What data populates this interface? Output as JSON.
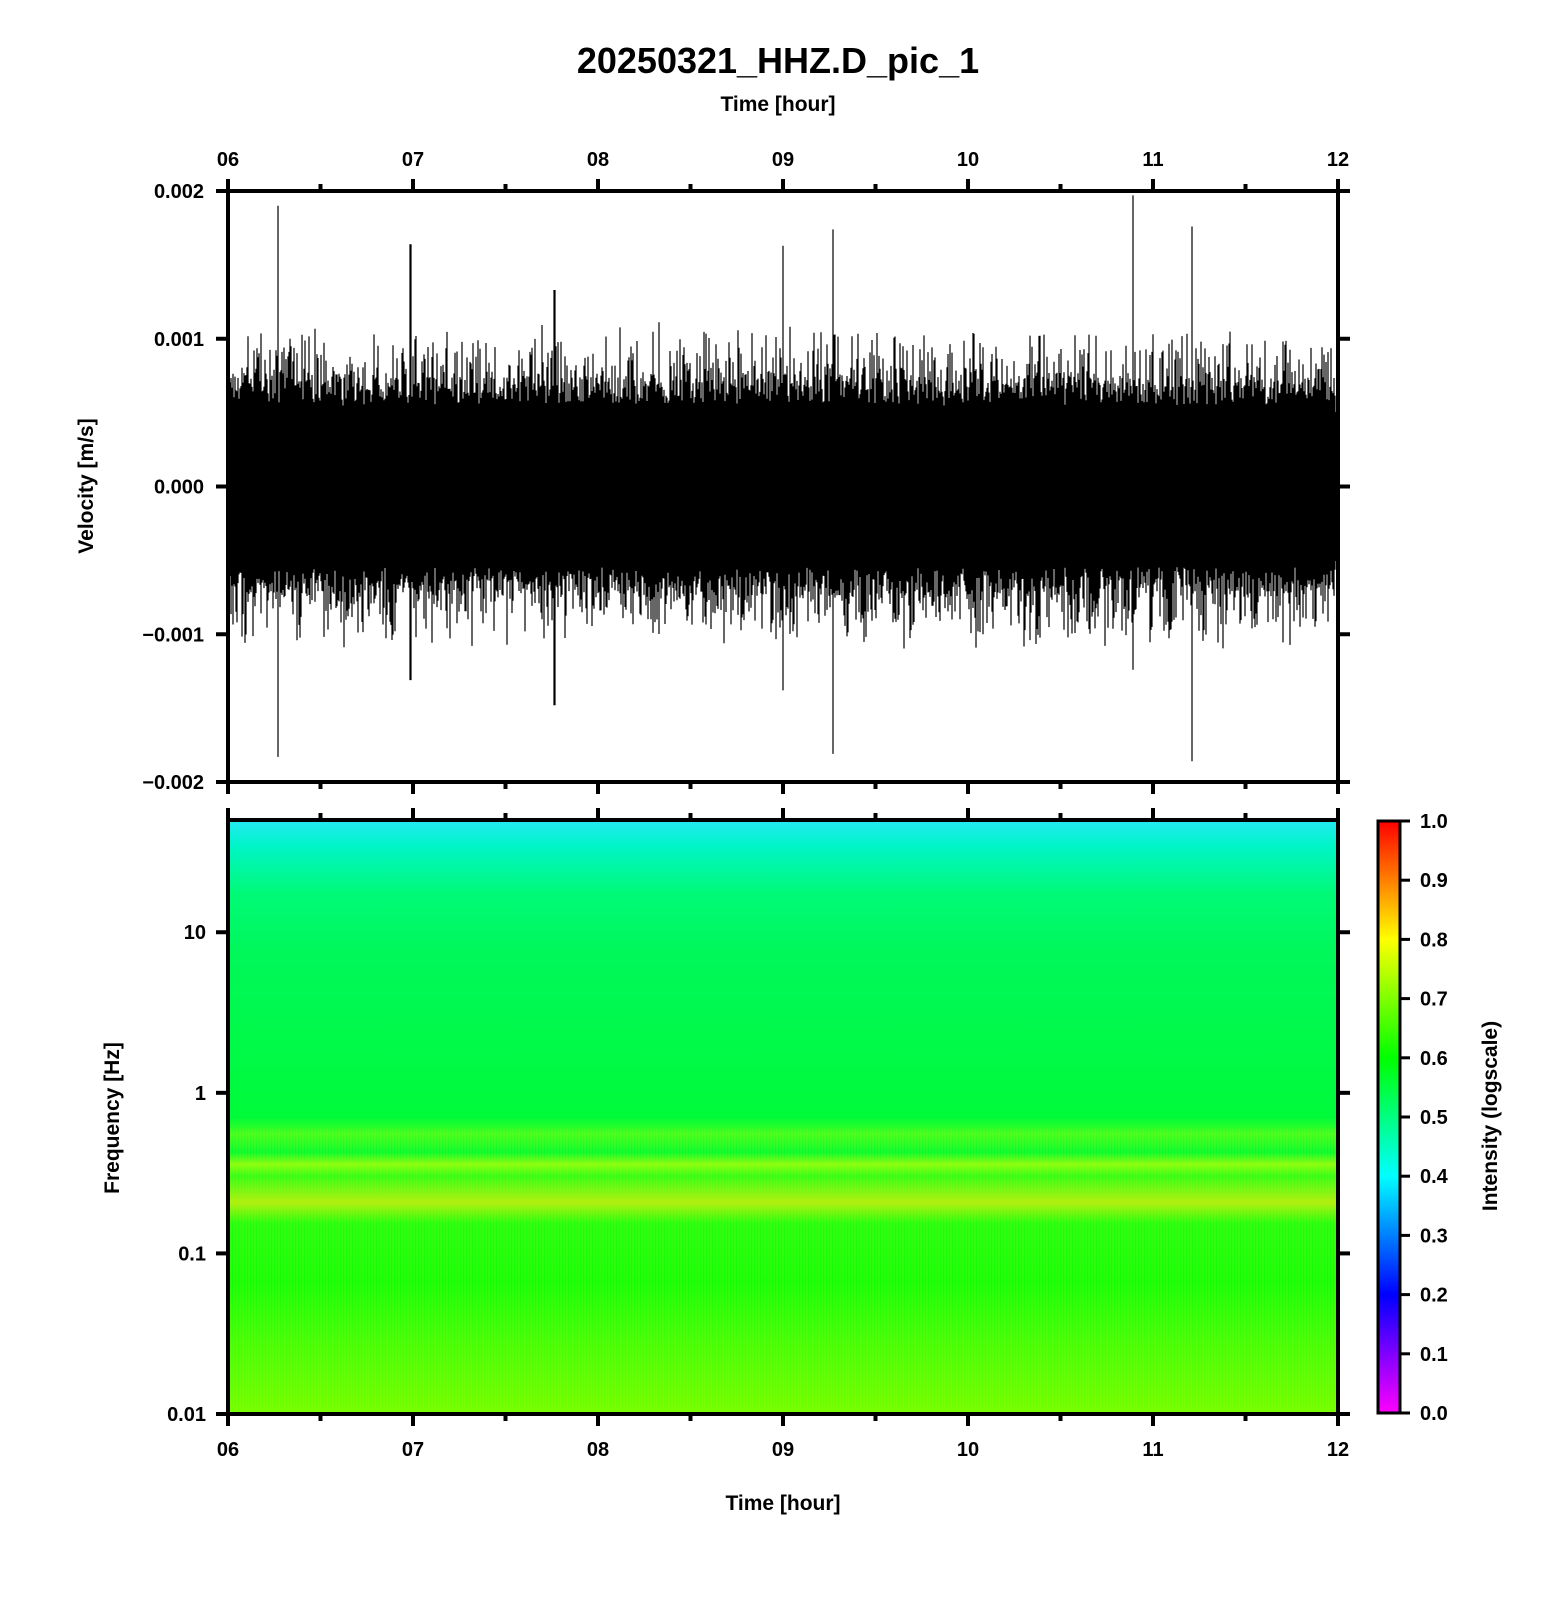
{
  "chart_data": [
    {
      "type": "line",
      "title": "20250321_HHZ.D_pic_1",
      "xlabel": "Time [hour]",
      "ylabel": "Velocity [m/s]",
      "x_tick_labels": [
        "06",
        "07",
        "08",
        "09",
        "10",
        "11",
        "12"
      ],
      "xlim": [
        6,
        12
      ],
      "y_tick_labels": [
        "0.002",
        "0.001",
        "0.000",
        "−0.001",
        "−0.002"
      ],
      "y_ticks": [
        0.002,
        0.001,
        0.0,
        -0.001,
        -0.002
      ],
      "ylim": [
        -0.002,
        0.002
      ],
      "color": "#000000",
      "description_values": {
        "typical_amplitude": 0.0007,
        "peaks": [
          {
            "x": 6.26,
            "max": 0.0019,
            "min": -0.00183
          },
          {
            "x": 6.98,
            "max": 0.00164,
            "min": -0.00131
          },
          {
            "x": 7.76,
            "max": 0.00133,
            "min": -0.00148
          },
          {
            "x": 9.0,
            "max": 0.00163,
            "min": -0.00138
          },
          {
            "x": 9.27,
            "max": 0.00174,
            "min": -0.00181
          },
          {
            "x": 10.9,
            "max": 0.00197,
            "min": -0.00124
          },
          {
            "x": 11.22,
            "max": 0.00176,
            "min": -0.00186
          }
        ]
      }
    },
    {
      "type": "heatmap",
      "xlabel": "Time [hour]",
      "ylabel": "Frequency [Hz]",
      "x_tick_labels": [
        "06",
        "07",
        "08",
        "09",
        "10",
        "11",
        "12"
      ],
      "xlim": [
        6,
        12
      ],
      "y_scale": "log",
      "y_tick_labels": [
        "10",
        "1",
        "0.1",
        "0.01"
      ],
      "y_ticks": [
        10,
        1,
        0.1,
        0.01
      ],
      "ylim": [
        0.01,
        50
      ],
      "colorbar": {
        "label": "Intensity (logscale)",
        "tick_labels": [
          "1.0",
          "0.9",
          "0.8",
          "0.7",
          "0.6",
          "0.5",
          "0.4",
          "0.3",
          "0.2",
          "0.1",
          "0.0"
        ],
        "range": [
          0,
          1
        ],
        "colors": [
          "#ff00ff",
          "#0000ff",
          "#00ffff",
          "#00ff00",
          "#ffff00",
          "#ff0000"
        ]
      },
      "intensity_profile": [
        {
          "freq": 50,
          "value": 0.45
        },
        {
          "freq": 20,
          "value": 0.55
        },
        {
          "freq": 10,
          "value": 0.62
        },
        {
          "freq": 1,
          "value": 0.63
        },
        {
          "freq": 0.4,
          "value": 0.69
        },
        {
          "freq": 0.2,
          "value": 0.7
        },
        {
          "freq": 0.1,
          "value": 0.65
        },
        {
          "freq": 0.01,
          "value": 0.68
        }
      ]
    }
  ]
}
